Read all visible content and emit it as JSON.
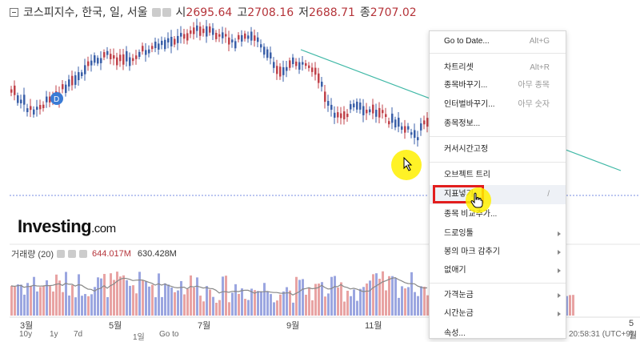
{
  "header": {
    "instrument": "코스피지수, 한국, 일, 서울",
    "open_label": "시",
    "open": "2695.64",
    "high_label": "고",
    "high": "2708.16",
    "low_label": "저",
    "low": "2688.71",
    "close_label": "종",
    "close": "2707.02"
  },
  "logo": {
    "brand": "Investing",
    "suffix": ".com"
  },
  "volume": {
    "label": "거래량 (20)",
    "value1": "644.017M",
    "value2": "630.428M"
  },
  "x_axis": [
    "3월",
    "5월",
    "7월",
    "9월",
    "11월",
    "5월"
  ],
  "bottom_bar": {
    "ranges": [
      "10y",
      "1y",
      "7d",
      "1일",
      "Go to"
    ],
    "time": "20:58:31 (UTC+9)"
  },
  "context_menu": {
    "items": [
      {
        "label": "Go to Date...",
        "shortcut": "Alt+G"
      },
      {
        "label": "차트리셋",
        "shortcut": "Alt+R"
      },
      {
        "label": "종목바꾸기...",
        "shortcut": "아무 종목"
      },
      {
        "label": "인터벌바꾸기...",
        "shortcut": "아무 숫자"
      },
      {
        "label": "종목정보...",
        "shortcut": ""
      },
      {
        "label": "커서시간고정",
        "shortcut": ""
      },
      {
        "label": "오브젝트 트리",
        "shortcut": ""
      },
      {
        "label": "지표넣기",
        "shortcut": "/"
      },
      {
        "label": "종목 비교추가...",
        "shortcut": ""
      },
      {
        "label": "드로잉툴",
        "shortcut": ""
      },
      {
        "label": "봉의 마크 감추기",
        "shortcut": ""
      },
      {
        "label": "없애기",
        "shortcut": ""
      },
      {
        "label": "가격눈금",
        "shortcut": ""
      },
      {
        "label": "시간눈금",
        "shortcut": ""
      },
      {
        "label": "속성...",
        "shortcut": ""
      }
    ]
  },
  "colors": {
    "up": "#c0424a",
    "down": "#3a5fa8",
    "vol_up": "#e8a3a3",
    "vol_down": "#9ba6e0",
    "trend": "#3fb8a6",
    "highlight_box": "#e21e1e",
    "cursor": "#fff200"
  },
  "icons": [
    "collapse-icon",
    "settings-icon",
    "eye-icon",
    "close-icon",
    "submenu-arrow-icon",
    "hand-cursor-icon",
    "arrow-cursor-icon"
  ]
}
